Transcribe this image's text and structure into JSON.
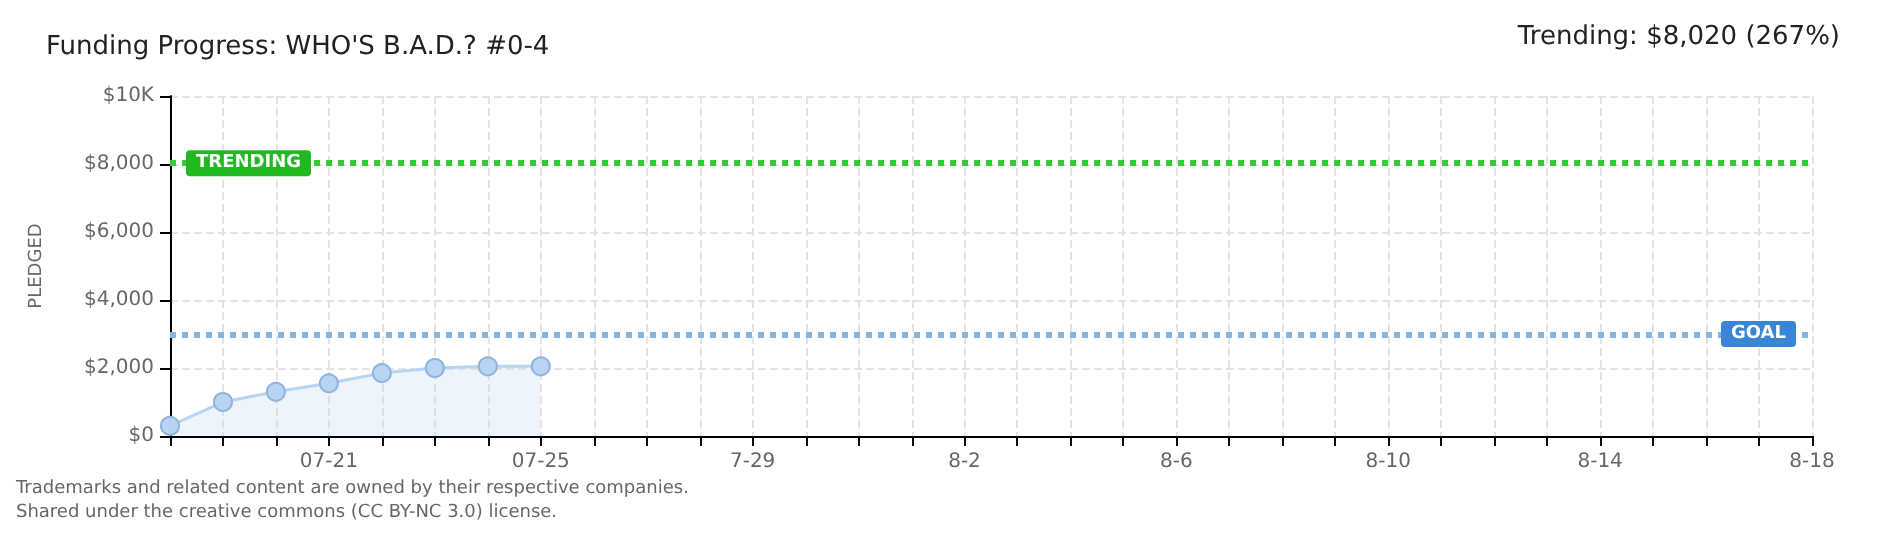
{
  "chart_data": {
    "type": "area",
    "title": "Funding Progress: WHO'S B.A.D.? #0-4",
    "ylabel": "PLEDGED",
    "annotations": [
      "Trending: $8,020 (267%)",
      "Trademarks and related content are owned by their respective companies.",
      "Shared under the creative commons (CC BY-NC 3.0) license."
    ],
    "x": [
      "--07-18",
      "--07-19",
      "--07-20",
      "--07-21",
      "--07-22",
      "--07-23",
      "--07-24",
      "--07-25"
    ],
    "series": [
      {
        "color": "#b9d4f2",
        "values": [
          300,
          1000,
          1300,
          1550,
          1850,
          2000,
          2050,
          2050
        ]
      }
    ],
    "xlim": [
      "--07-18",
      "--08-18"
    ],
    "xticks": [
      {
        "value": "--07-18",
        "label": null
      },
      {
        "value": "--07-19",
        "label": null
      },
      {
        "value": "--07-20",
        "label": null
      },
      {
        "value": "--07-21",
        "label": "07-21"
      },
      {
        "value": "--07-22",
        "label": null
      },
      {
        "value": "--07-23",
        "label": null
      },
      {
        "value": "--07-24",
        "label": null
      },
      {
        "value": "--07-25",
        "label": "07-25"
      },
      {
        "value": "--07-26",
        "label": null
      },
      {
        "value": "--07-27",
        "label": null
      },
      {
        "value": "--07-28",
        "label": null
      },
      {
        "value": "--07-29",
        "label": "7-29"
      },
      {
        "value": "--07-30",
        "label": null
      },
      {
        "value": "--07-31",
        "label": null
      },
      {
        "value": "--08-01",
        "label": null
      },
      {
        "value": "--08-02",
        "label": "8-2"
      },
      {
        "value": "--08-03",
        "label": null
      },
      {
        "value": "--08-04",
        "label": null
      },
      {
        "value": "--08-05",
        "label": null
      },
      {
        "value": "--08-06",
        "label": "8-6"
      },
      {
        "value": "--08-07",
        "label": null
      },
      {
        "value": "--08-08",
        "label": null
      },
      {
        "value": "--08-09",
        "label": null
      },
      {
        "value": "--08-10",
        "label": "8-10"
      },
      {
        "value": "--08-11",
        "label": null
      },
      {
        "value": "--08-12",
        "label": null
      },
      {
        "value": "--08-13",
        "label": null
      },
      {
        "value": "--08-14",
        "label": "8-14"
      },
      {
        "value": "--08-15",
        "label": null
      },
      {
        "value": "--08-16",
        "label": null
      },
      {
        "value": "--08-17",
        "label": null
      },
      {
        "value": "--08-18",
        "label": "8-18"
      }
    ],
    "ylim": [
      0,
      10000
    ],
    "yticks": [
      {
        "value": 0,
        "label": "$0"
      },
      {
        "value": 2000,
        "label": "$2,000"
      },
      {
        "value": 4000,
        "label": "$4,000"
      },
      {
        "value": 6000,
        "label": "$6,000"
      },
      {
        "value": 8000,
        "label": "$8,000"
      },
      {
        "value": 10000,
        "label": "$10K"
      }
    ],
    "ref_lines": [
      {
        "axis": "y",
        "value": 8020,
        "label": "TRENDING",
        "color": "#33cc33",
        "line_style": "dotted"
      },
      {
        "axis": "y",
        "value": 3000,
        "label": "GOAL",
        "color": "#88b4e4",
        "line_style": "dotted"
      }
    ],
    "grid": true,
    "marker": "circle",
    "line_style": "solid"
  }
}
